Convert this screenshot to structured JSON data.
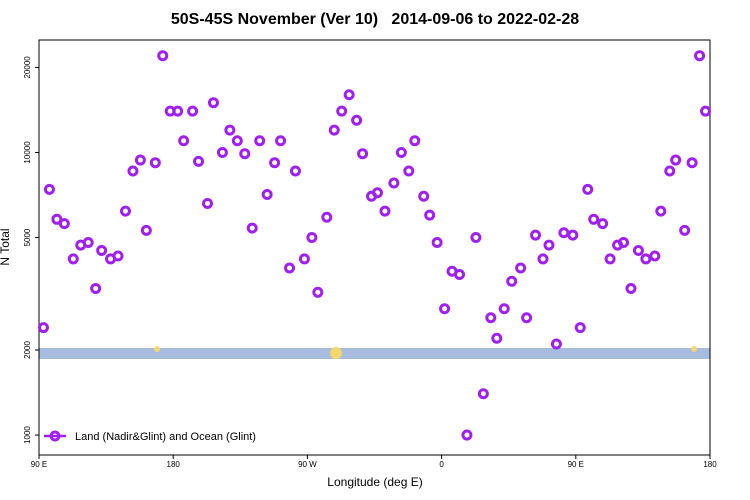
{
  "chart_data": {
    "type": "scatter",
    "title": "50S-45S November (Ver 10)   2014-09-06 to 2022-02-28",
    "x_label": "Longitude (deg E)",
    "y_label": "N Total",
    "log_y": true,
    "legend": "bottom-left",
    "xlim": [
      90,
      540
    ],
    "xticks": [
      {
        "value": 90,
        "label": "90 E"
      },
      {
        "value": 180,
        "label": "180"
      },
      {
        "value": 270,
        "label": "90 W"
      },
      {
        "value": 360,
        "label": "0"
      },
      {
        "value": 450,
        "label": "90 E"
      },
      {
        "value": 540,
        "label": "180"
      }
    ],
    "ylim": [
      850,
      25000
    ],
    "yticks": [
      1000,
      2000,
      5000,
      10000,
      20000
    ],
    "series": [
      {
        "name": "Land (Nadir&Glint) and Ocean (Glint)",
        "color": "#a020f0",
        "x": [
          93,
          97,
          102,
          107,
          113,
          118,
          123,
          128,
          132,
          138,
          143,
          148,
          153,
          158,
          162,
          168,
          173,
          178,
          183,
          187,
          193,
          197,
          203,
          207,
          213,
          218,
          223,
          228,
          233,
          238,
          243,
          248,
          252,
          258,
          262,
          268,
          273,
          277,
          283,
          288,
          293,
          298,
          303,
          307,
          313,
          317,
          322,
          328,
          333,
          338,
          342,
          348,
          352,
          357,
          362,
          367,
          372,
          377,
          383,
          388,
          393,
          397,
          402,
          407,
          413,
          417,
          423,
          428,
          432,
          437,
          442,
          448,
          453,
          458,
          462,
          468,
          473,
          478,
          482,
          487,
          492,
          497,
          503,
          507,
          513,
          517,
          523,
          528,
          533,
          537
        ],
        "values": [
          2400,
          7400,
          5800,
          5600,
          4200,
          4700,
          4800,
          3300,
          4500,
          4200,
          4300,
          6200,
          8600,
          9400,
          5300,
          9200,
          22000,
          14000,
          14000,
          11000,
          14000,
          9300,
          6600,
          15000,
          10000,
          12000,
          11000,
          9900,
          5400,
          11000,
          7100,
          9200,
          11000,
          3900,
          8600,
          4200,
          5000,
          3200,
          5900,
          12000,
          14000,
          16000,
          13000,
          9900,
          7000,
          7200,
          6200,
          7800,
          10000,
          8600,
          11000,
          7000,
          6000,
          4800,
          2800,
          3800,
          3700,
          1000,
          5000,
          1400,
          2600,
          2200,
          2800,
          3500,
          3900,
          2600,
          5100,
          4200,
          4700,
          2100,
          5200,
          5100,
          2400,
          7400,
          5800,
          5600,
          4200,
          4700,
          4800,
          3300,
          4500,
          4200,
          4300,
          6200,
          8600,
          9400,
          5300,
          9200,
          22000,
          14000
        ]
      }
    ]
  }
}
